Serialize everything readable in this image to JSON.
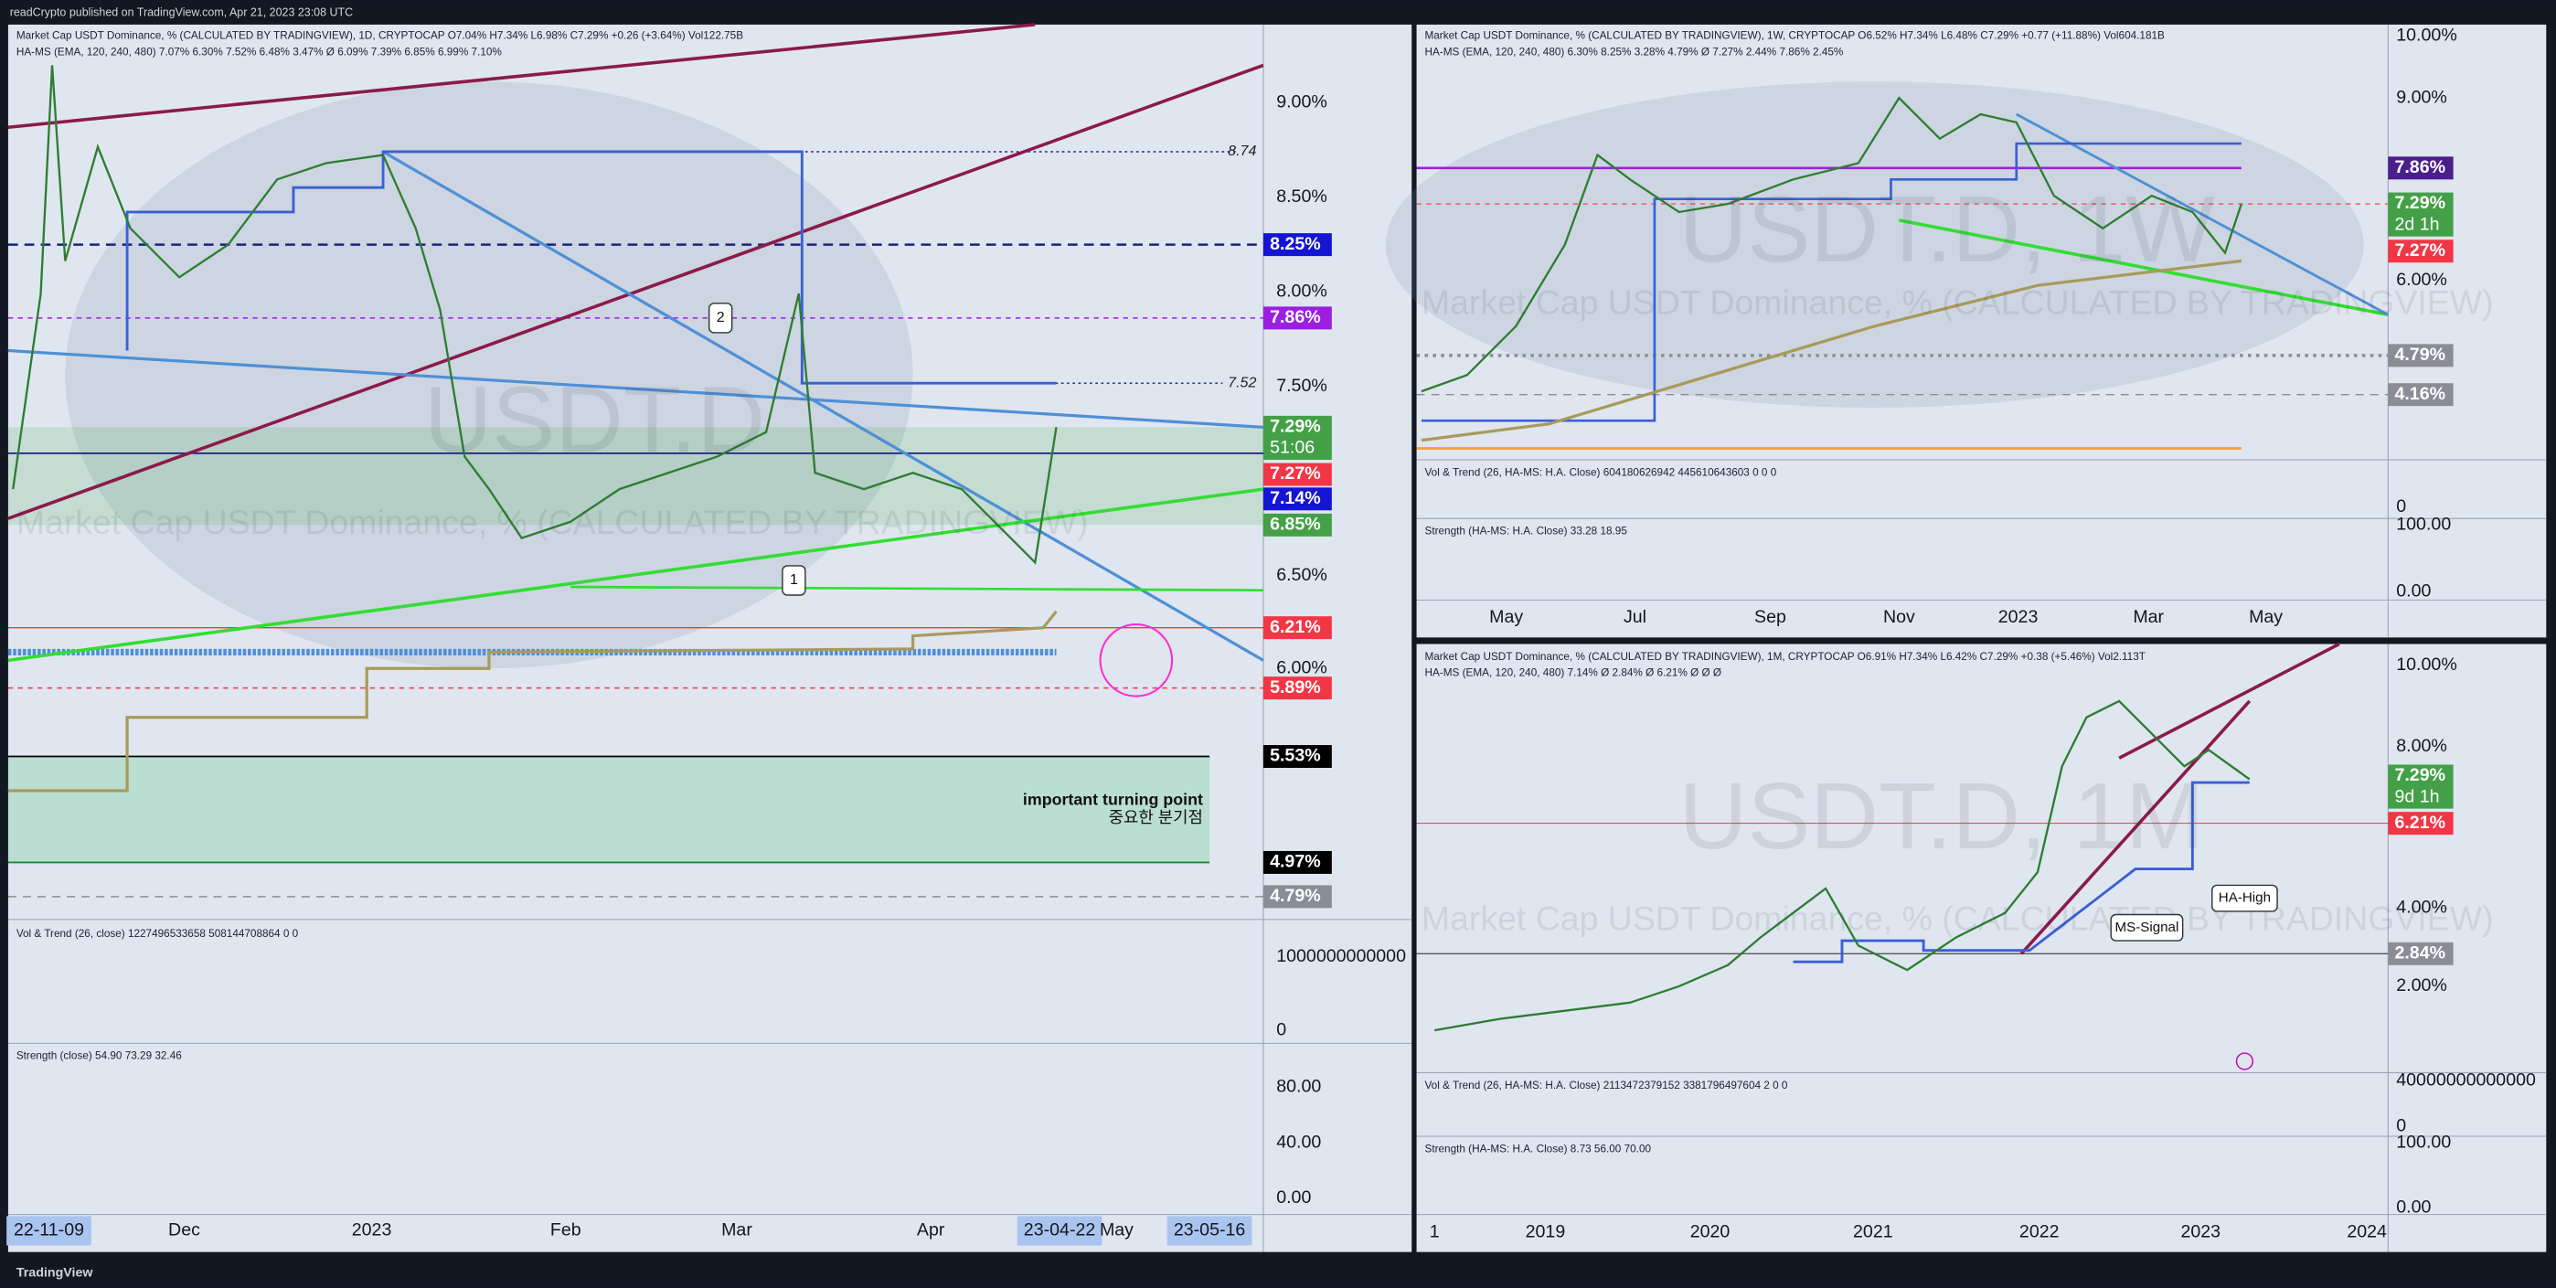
{
  "header": {
    "title": "readCrypto published on TradingView.com, Apr 21, 2023 23:08 UTC"
  },
  "footer": {
    "brand": "TradingView"
  },
  "panels": [
    {
      "legend": [
        "Market Cap USDT Dominance, % (CALCULATED BY TRADINGVIEW), 1D, CRYPTOCAP O7.04% H7.34% L6.98% C7.29% +0.26 (+3.64%) Vol122.75B",
        "HA-MS (EMA, 120, 240, 480) 7.07% 6.30% 7.52% 6.48% 3.47% Ø 6.09% 7.39% 6.85% 6.99% 7.10%"
      ],
      "watermark": "USDT.D",
      "subtitle": "Market Cap USDT Dominance, % (CALCULATED BY TRADINGVIEW)",
      "price_axis": [
        "9.00%",
        "8.50%",
        "8.00%",
        "7.50%",
        "6.50%",
        "6.00%"
      ],
      "price_tags": [
        {
          "label": "8.25%",
          "color": "#1414d4"
        },
        {
          "label": "7.86%",
          "color": "#9c1fe0"
        },
        {
          "label": "7.29%",
          "color": "#43a047"
        },
        {
          "label": "7.27%",
          "color": "#f23645"
        },
        {
          "label": "7.14%",
          "color": "#1414d4"
        },
        {
          "label": "6.85%",
          "color": "#43a047"
        },
        {
          "label": "6.21%",
          "color": "#f23645"
        },
        {
          "label": "5.89%",
          "color": "#f23645"
        },
        {
          "label": "5.53%",
          "color": "#000000"
        },
        {
          "label": "4.97%",
          "color": "#000000"
        },
        {
          "label": "4.79%",
          "color": "#8a8d96"
        }
      ],
      "countdown": "51:06",
      "line_labels": [
        "8.74",
        "7.52"
      ],
      "x_axis": [
        "22-11-09",
        "Dec",
        "2023",
        "Feb",
        "Mar",
        "Apr",
        "23-04-22",
        "May",
        "23-05-16"
      ],
      "annotations": [
        "important turning point",
        "중요한 분기점",
        "2",
        "1"
      ],
      "indicators": [
        {
          "legend": "Vol & Trend (26, close) 1227496533658 508144708864 0 0",
          "axis": [
            "1000000000000",
            "0"
          ]
        },
        {
          "legend": "Strength (close) 54.90 73.29 32.46",
          "axis": [
            "80.00",
            "40.00",
            "0.00"
          ]
        }
      ]
    },
    {
      "legend": [
        "Market Cap USDT Dominance, % (CALCULATED BY TRADINGVIEW), 1W, CRYPTOCAP O6.52% H7.34% L6.48% C7.29% +0.77 (+11.88%) Vol604.181B",
        "HA-MS (EMA, 120, 240, 480) 6.30% 8.25% 3.28% 4.79% Ø 7.27% 2.44% 7.86% 2.45%"
      ],
      "watermark": "USDT.D, 1W",
      "subtitle": "Market Cap USDT Dominance, % (CALCULATED BY TRADINGVIEW)",
      "price_axis": [
        "10.00%",
        "9.00%",
        "6.00%"
      ],
      "price_tags": [
        {
          "label": "7.86%",
          "color": "#4a1f8c"
        },
        {
          "label": "7.29%",
          "color": "#43a047"
        },
        {
          "label": "7.27%",
          "color": "#f23645"
        },
        {
          "label": "4.79%",
          "color": "#8a8d96"
        },
        {
          "label": "4.16%",
          "color": "#8a8d96"
        }
      ],
      "countdown": "2d 1h",
      "x_axis": [
        "May",
        "Jul",
        "Sep",
        "Nov",
        "2023",
        "Mar",
        "May"
      ],
      "annotations": [],
      "indicators": [
        {
          "legend": "Vol & Trend (26, HA-MS: H.A. Close) 604180626942 445610643603 0 0 0",
          "axis": [
            "0"
          ]
        },
        {
          "legend": "Strength (HA-MS: H.A. Close) 33.28 18.95",
          "axis": [
            "100.00",
            "0.00"
          ]
        }
      ]
    },
    {
      "legend": [
        "Market Cap USDT Dominance, % (CALCULATED BY TRADINGVIEW), 1M, CRYPTOCAP O6.91% H7.34% L6.42% C7.29% +0.38 (+5.46%) Vol2.113T",
        "HA-MS (EMA, 120, 240, 480) 7.14% Ø 2.84% Ø 6.21% Ø Ø Ø"
      ],
      "watermark": "USDT.D, 1M",
      "subtitle": "Market Cap USDT Dominance, % (CALCULATED BY TRADINGVIEW)",
      "price_axis": [
        "10.00%",
        "8.00%",
        "4.00%",
        "2.00%"
      ],
      "price_tags": [
        {
          "label": "7.29%",
          "color": "#43a047"
        },
        {
          "label": "6.21%",
          "color": "#f23645"
        },
        {
          "label": "2.84%",
          "color": "#8a8d96"
        }
      ],
      "countdown": "9d 1h",
      "x_axis": [
        "1",
        "2019",
        "2020",
        "2021",
        "2022",
        "2023",
        "2024"
      ],
      "annotations": [
        "MS-Signal",
        "HA-High"
      ],
      "indicators": [
        {
          "legend": "Vol & Trend (26, HA-MS: H.A. Close) 2113472379152 3381796497604 2 0 0",
          "axis": [
            "40000000000000",
            "0"
          ]
        },
        {
          "legend": "Strength (HA-MS: H.A. Close) 8.73 56.00 70.00",
          "axis": [
            "100.00",
            "0.00"
          ]
        }
      ]
    }
  ]
}
